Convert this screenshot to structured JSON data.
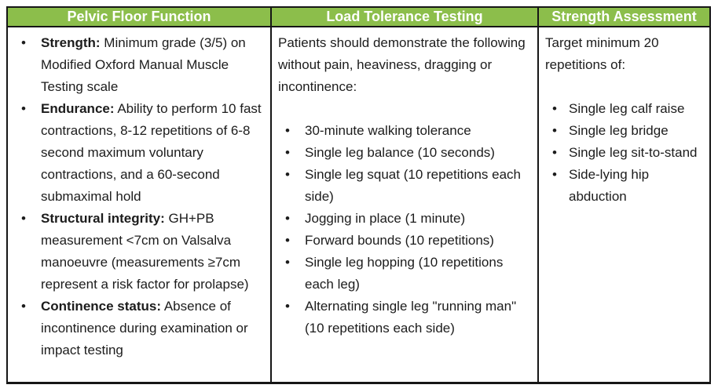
{
  "table": {
    "accent_color": "#8CBE4B",
    "border_color": "#161616",
    "header_text_color": "#FFFFFF",
    "columns": [
      {
        "header": "Pelvic Floor Function",
        "items": [
          {
            "label": "Strength:",
            "text": "Minimum grade (3/5) on Modified Oxford Manual Muscle Testing scale"
          },
          {
            "label": "Endurance:",
            "text": "Ability to perform 10 fast contractions, 8-12 repetitions of 6-8 second maximum voluntary contractions, and a 60-second submaximal hold"
          },
          {
            "label": "Structural integrity:",
            "text": "GH+PB measurement <7cm on Valsalva manoeuvre (measurements ≥7cm represent a risk factor for prolapse)"
          },
          {
            "label": "Continence status:",
            "text": "Absence of incontinence during examination or impact testing"
          }
        ]
      },
      {
        "header": "Load Tolerance Testing",
        "intro": "Patients should demonstrate the following without pain, heaviness, dragging or incontinence:",
        "items": [
          "30-minute walking tolerance",
          "Single leg balance (10 seconds)",
          "Single leg squat (10 repetitions each side)",
          "Jogging in place (1 minute)",
          "Forward bounds (10 repetitions)",
          "Single leg hopping (10 repetitions each leg)",
          "Alternating single leg \"running man\" (10 repetitions each side)"
        ]
      },
      {
        "header": "Strength Assessment",
        "intro": "Target minimum 20 repetitions of:",
        "items": [
          "Single leg calf raise",
          "Single leg bridge",
          "Single leg sit-to-stand",
          "Side-lying hip abduction"
        ]
      }
    ]
  }
}
